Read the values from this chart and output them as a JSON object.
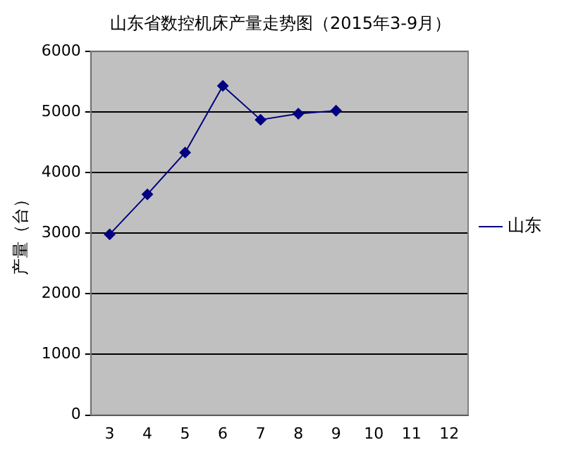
{
  "chart_data": {
    "type": "line",
    "title": "山东省数控机床产量走势图（2015年3-9月）",
    "ylabel": "产量（台）",
    "categories": [
      "3",
      "4",
      "5",
      "6",
      "7",
      "8",
      "9",
      "10",
      "11",
      "12"
    ],
    "series": [
      {
        "name": "山东",
        "color": "#000080",
        "values": [
          2980,
          3640,
          4330,
          5430,
          4870,
          4970,
          5020,
          null,
          null,
          null
        ]
      }
    ],
    "ylim": [
      0,
      6000
    ],
    "yticks": [
      0,
      1000,
      2000,
      3000,
      4000,
      5000,
      6000
    ],
    "grid": "y",
    "legend": "right",
    "marker": "diamond",
    "line_style": "solid"
  }
}
